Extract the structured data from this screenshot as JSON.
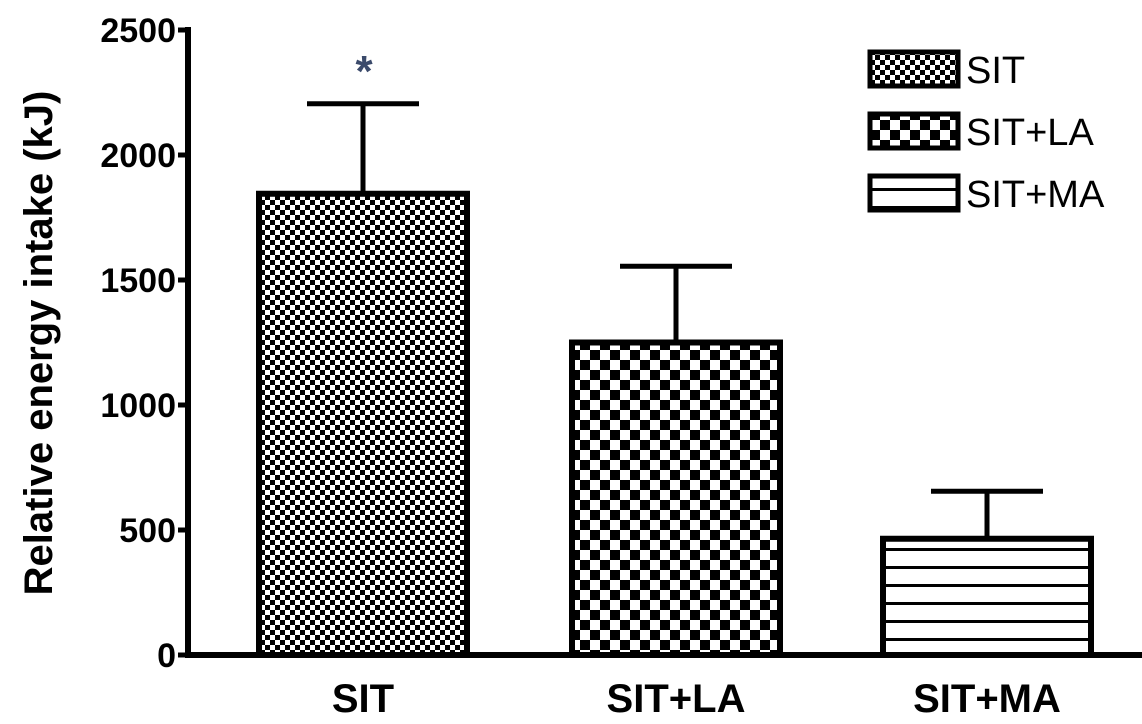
{
  "chart_data": {
    "type": "bar",
    "categories": [
      "SIT",
      "SIT+LA",
      "SIT+MA"
    ],
    "values": [
      1845,
      1250,
      465
    ],
    "error_upper": [
      2205,
      1555,
      655
    ],
    "ylabel": "Relative energy intake (kJ)",
    "ylim": [
      0,
      2500
    ],
    "yticks": [
      0,
      500,
      1000,
      1500,
      2000,
      2500
    ],
    "legend": {
      "placement": "top-right",
      "entries": [
        "SIT",
        "SIT+LA",
        "SIT+MA"
      ]
    },
    "patterns": [
      "fine-checker",
      "checker",
      "horizontal-lines"
    ],
    "annotations": [
      {
        "category": "SIT",
        "text": "*"
      }
    ],
    "grid": false
  }
}
